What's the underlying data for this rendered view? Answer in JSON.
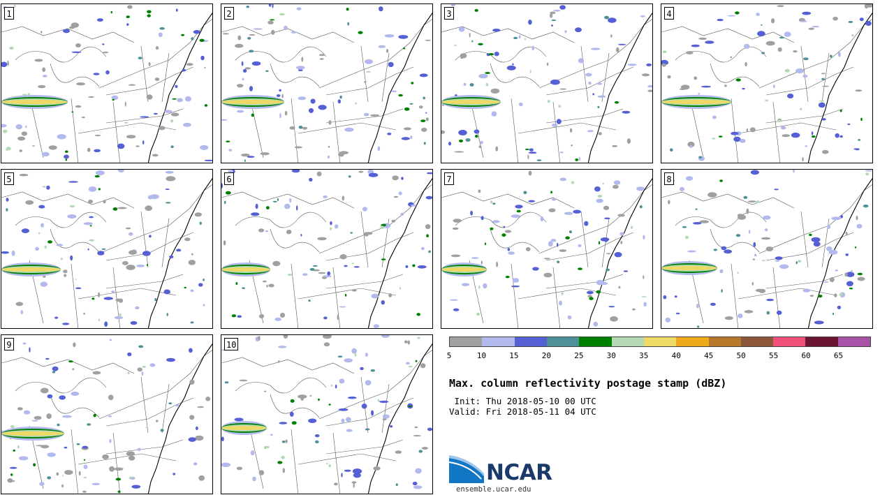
{
  "members": [
    "1",
    "2",
    "3",
    "4",
    "5",
    "6",
    "7",
    "8",
    "9",
    "10"
  ],
  "legend": {
    "colors": [
      "#a0a0a0",
      "#b2b9ec",
      "#5460d4",
      "#4d9097",
      "#008000",
      "#b5d9b5",
      "#efd965",
      "#edaa1c",
      "#b7782b",
      "#8c5638",
      "#f0507a",
      "#6b1532",
      "#a953a8"
    ],
    "ticks": [
      "5",
      "10",
      "15",
      "20",
      "25",
      "30",
      "35",
      "40",
      "45",
      "50",
      "55",
      "60",
      "65"
    ]
  },
  "title": "Max. column reflectivity postage stamp (dBZ)",
  "init_line": " Init: Thu 2018-05-10 00 UTC",
  "valid_line": "Valid: Fri 2018-05-11 04 UTC",
  "logo": {
    "org": "NCAR",
    "website": "ensemble.ucar.edu"
  }
}
